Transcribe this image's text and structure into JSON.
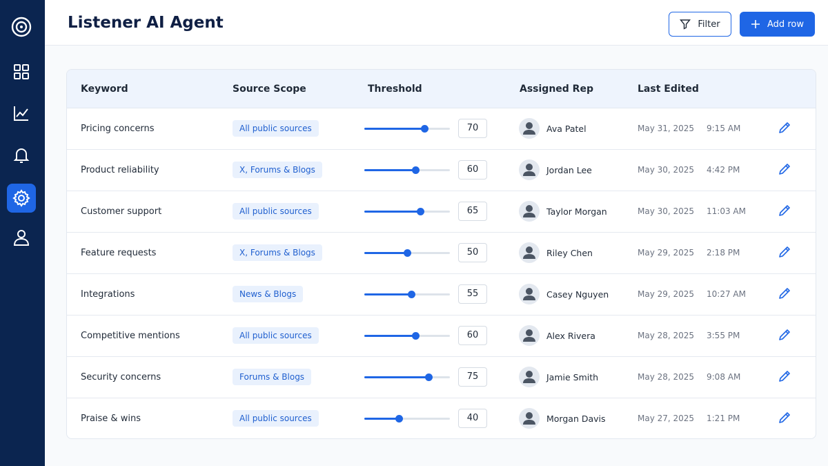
{
  "header": {
    "title": "Listener AI Agent",
    "filter_button": "Filter",
    "add_button": "Add row"
  },
  "table": {
    "columns": [
      "Keyword",
      "Source Scope",
      "Threshold",
      "Assigned Rep",
      "Last Edited"
    ],
    "rows": [
      {
        "keyword": "Pricing concerns",
        "source": "All public sources",
        "threshold": 70,
        "rep": "Ava Patel",
        "date": "May 31, 2025",
        "time": "9:15 AM"
      },
      {
        "keyword": "Product reliability",
        "source": "X, Forums & Blogs",
        "threshold": 60,
        "rep": "Jordan Lee",
        "date": "May 30, 2025",
        "time": "4:42 PM"
      },
      {
        "keyword": "Customer support",
        "source": "All public sources",
        "threshold": 65,
        "rep": "Taylor Morgan",
        "date": "May 30, 2025",
        "time": "11:03 AM"
      },
      {
        "keyword": "Feature requests",
        "source": "X, Forums & Blogs",
        "threshold": 50,
        "rep": "Riley Chen",
        "date": "May 29, 2025",
        "time": "2:18 PM"
      },
      {
        "keyword": "Integrations",
        "source": "News & Blogs",
        "threshold": 55,
        "rep": "Casey Nguyen",
        "date": "May 29, 2025",
        "time": "10:27 AM"
      },
      {
        "keyword": "Competitive mentions",
        "source": "All public sources",
        "threshold": 60,
        "rep": "Alex Rivera",
        "date": "May 28, 2025",
        "time": "3:55 PM"
      },
      {
        "keyword": "Security concerns",
        "source": "Forums & Blogs",
        "threshold": 75,
        "rep": "Jamie Smith",
        "date": "May 28, 2025",
        "time": "9:08 AM"
      },
      {
        "keyword": "Praise & wins",
        "source": "All public sources",
        "threshold": 40,
        "rep": "Morgan Davis",
        "date": "May 27, 2025",
        "time": "1:21 PM"
      }
    ]
  }
}
